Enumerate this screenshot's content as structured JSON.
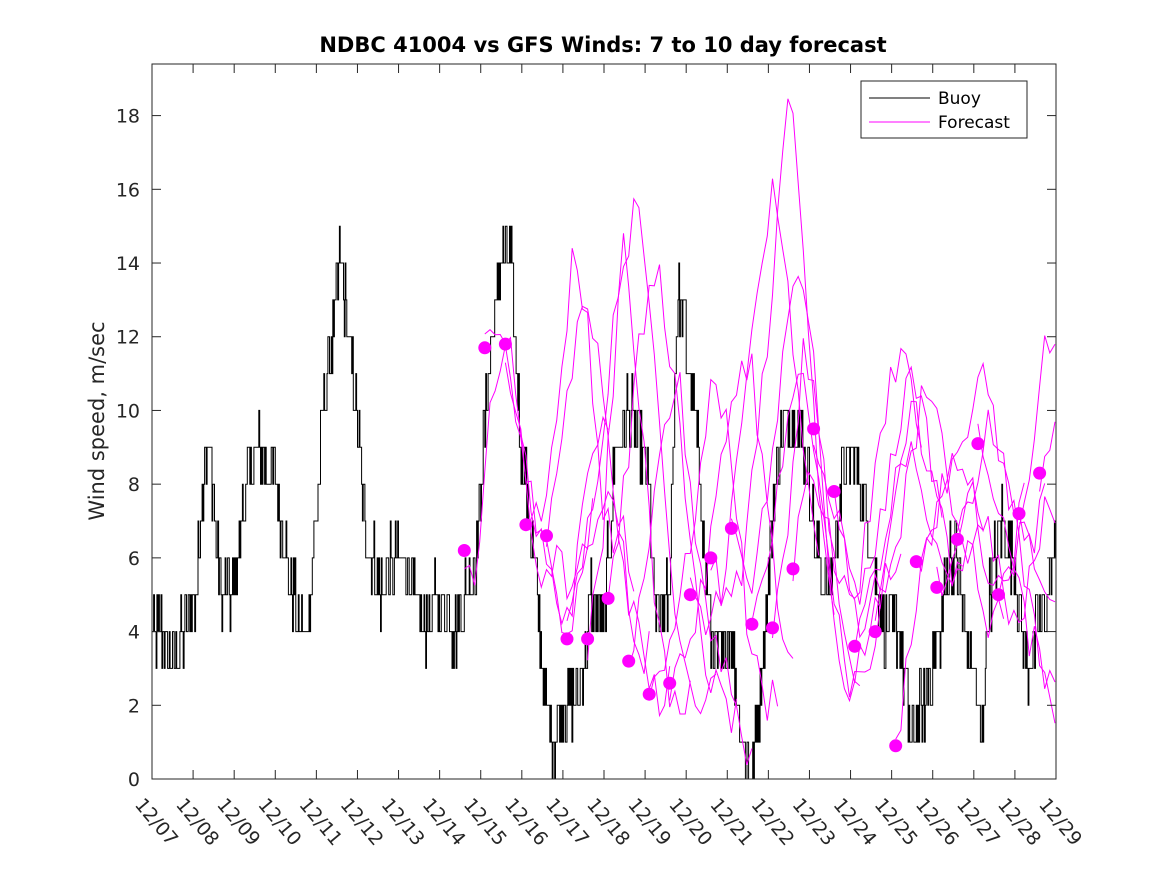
{
  "chart_data": {
    "type": "line",
    "title": "NDBC 41004 vs GFS Winds: 7 to 10 day forecast",
    "xlabel": "",
    "ylabel": "Wind speed, m/sec",
    "ylim": [
      0,
      19.4
    ],
    "xlim": [
      0,
      22
    ],
    "yticks": [
      0,
      2,
      4,
      6,
      8,
      10,
      12,
      14,
      16,
      18
    ],
    "xtick_labels": [
      "12/07",
      "12/08",
      "12/09",
      "12/10",
      "12/11",
      "12/12",
      "12/13",
      "12/14",
      "12/15",
      "12/16",
      "12/17",
      "12/18",
      "12/19",
      "12/20",
      "12/21",
      "12/22",
      "12/23",
      "12/24",
      "12/25",
      "12/26",
      "12/27",
      "12/28",
      "12/29"
    ],
    "legend": {
      "position": "top-right",
      "entries": [
        "Buoy",
        "Forecast"
      ]
    },
    "colors": {
      "buoy": "#000000",
      "forecast": "#ff00ff",
      "axes": "#262626"
    },
    "buoy_anchors": [
      [
        0.0,
        4
      ],
      [
        0.3,
        4
      ],
      [
        0.5,
        3
      ],
      [
        0.8,
        4
      ],
      [
        1.1,
        5
      ],
      [
        1.3,
        9
      ],
      [
        1.5,
        8
      ],
      [
        1.7,
        5
      ],
      [
        2.0,
        5
      ],
      [
        2.3,
        8
      ],
      [
        2.7,
        9
      ],
      [
        3.0,
        8
      ],
      [
        3.3,
        6
      ],
      [
        3.6,
        4
      ],
      [
        3.8,
        4
      ],
      [
        4.2,
        10
      ],
      [
        4.5,
        13
      ],
      [
        4.6,
        14
      ],
      [
        4.9,
        11
      ],
      [
        5.2,
        7
      ],
      [
        5.6,
        5
      ],
      [
        5.9,
        6
      ],
      [
        6.2,
        6
      ],
      [
        6.6,
        4
      ],
      [
        7.0,
        5
      ],
      [
        7.4,
        4
      ],
      [
        7.9,
        6
      ],
      [
        8.2,
        11
      ],
      [
        8.5,
        14
      ],
      [
        8.75,
        14
      ],
      [
        9.0,
        9
      ],
      [
        9.3,
        6
      ],
      [
        9.6,
        2
      ],
      [
        9.8,
        1
      ],
      [
        10.0,
        2
      ],
      [
        10.4,
        2
      ],
      [
        10.7,
        5
      ],
      [
        11.0,
        4
      ],
      [
        11.3,
        9
      ],
      [
        11.6,
        10
      ],
      [
        11.9,
        9
      ],
      [
        12.1,
        8
      ],
      [
        12.3,
        4
      ],
      [
        12.6,
        5
      ],
      [
        12.8,
        13
      ],
      [
        13.0,
        12
      ],
      [
        13.3,
        9
      ],
      [
        13.6,
        4
      ],
      [
        13.9,
        3
      ],
      [
        14.1,
        4
      ],
      [
        14.4,
        1
      ],
      [
        14.6,
        0
      ],
      [
        14.8,
        2
      ],
      [
        15.1,
        7
      ],
      [
        15.3,
        9
      ],
      [
        15.6,
        10
      ],
      [
        15.9,
        9
      ],
      [
        16.2,
        6
      ],
      [
        16.5,
        5
      ],
      [
        16.8,
        8
      ],
      [
        17.1,
        9
      ],
      [
        17.4,
        7
      ],
      [
        17.7,
        5
      ],
      [
        17.9,
        4
      ],
      [
        18.2,
        4
      ],
      [
        18.5,
        1
      ],
      [
        18.8,
        2
      ],
      [
        19.2,
        4
      ],
      [
        19.4,
        6
      ],
      [
        19.6,
        6
      ],
      [
        19.8,
        4
      ],
      [
        20.0,
        3
      ],
      [
        20.2,
        1
      ],
      [
        20.4,
        5
      ],
      [
        20.7,
        7
      ],
      [
        21.0,
        6
      ],
      [
        21.3,
        3
      ],
      [
        21.6,
        4
      ],
      [
        21.8,
        5
      ],
      [
        22.0,
        6
      ]
    ],
    "forecast_anchors": [
      [
        [
          7.6,
          6.2
        ],
        [
          7.9,
          5.5
        ],
        [
          8.2,
          9.5
        ],
        [
          8.6,
          12.0
        ],
        [
          9.0,
          8.5
        ],
        [
          9.4,
          5.5
        ],
        [
          9.8,
          6.0
        ],
        [
          10.3,
          5.0
        ],
        [
          10.8,
          7.5
        ]
      ],
      [
        [
          8.1,
          11.7
        ],
        [
          8.5,
          12.6
        ],
        [
          8.9,
          10.5
        ],
        [
          9.3,
          7.0
        ],
        [
          9.8,
          5.0
        ],
        [
          10.2,
          4.5
        ],
        [
          10.6,
          8.0
        ],
        [
          11.0,
          10.5
        ],
        [
          11.2,
          9.5
        ]
      ],
      [
        [
          8.6,
          11.8
        ],
        [
          9.0,
          9.0
        ],
        [
          9.4,
          7.0
        ],
        [
          9.8,
          5.0
        ],
        [
          10.2,
          4.0
        ],
        [
          10.6,
          6.0
        ],
        [
          11.0,
          8.0
        ],
        [
          11.4,
          7.0
        ],
        [
          11.8,
          5.0
        ]
      ],
      [
        [
          9.1,
          6.9
        ],
        [
          9.5,
          7.5
        ],
        [
          9.9,
          10.0
        ],
        [
          10.2,
          14.0
        ],
        [
          10.6,
          12.5
        ],
        [
          11.0,
          7.0
        ],
        [
          11.4,
          6.5
        ],
        [
          11.8,
          3.2
        ],
        [
          12.1,
          3.5
        ]
      ],
      [
        [
          9.6,
          6.6
        ],
        [
          10.0,
          9.0
        ],
        [
          10.4,
          13.0
        ],
        [
          10.8,
          12.0
        ],
        [
          11.2,
          8.0
        ],
        [
          11.6,
          5.0
        ],
        [
          12.0,
          3.0
        ],
        [
          12.4,
          2.0
        ],
        [
          12.6,
          3.0
        ]
      ],
      [
        [
          10.1,
          3.8
        ],
        [
          10.5,
          6.0
        ],
        [
          10.9,
          9.0
        ],
        [
          11.2,
          12.0
        ],
        [
          11.5,
          15.0
        ],
        [
          11.9,
          10.0
        ],
        [
          12.3,
          4.0
        ],
        [
          12.7,
          2.0
        ],
        [
          13.1,
          2.5
        ]
      ],
      [
        [
          10.6,
          3.8
        ],
        [
          11.0,
          7.0
        ],
        [
          11.4,
          14.0
        ],
        [
          11.8,
          15.5
        ],
        [
          12.2,
          12.0
        ],
        [
          12.6,
          6.0
        ],
        [
          13.0,
          3.0
        ],
        [
          13.4,
          2.0
        ],
        [
          13.8,
          3.5
        ]
      ],
      [
        [
          11.1,
          4.9
        ],
        [
          11.5,
          8.0
        ],
        [
          11.9,
          12.0
        ],
        [
          12.3,
          14.0
        ],
        [
          12.7,
          11.0
        ],
        [
          13.1,
          6.0
        ],
        [
          13.5,
          3.0
        ],
        [
          13.9,
          2.0
        ],
        [
          14.3,
          1.5
        ]
      ],
      [
        [
          11.6,
          3.2
        ],
        [
          12.0,
          5.0
        ],
        [
          12.4,
          9.0
        ],
        [
          12.8,
          11.0
        ],
        [
          13.2,
          7.0
        ],
        [
          13.6,
          4.0
        ],
        [
          14.0,
          3.0
        ],
        [
          14.4,
          1.0
        ],
        [
          14.7,
          0.5
        ]
      ],
      [
        [
          12.1,
          2.3
        ],
        [
          12.5,
          3.5
        ],
        [
          12.9,
          5.0
        ],
        [
          13.3,
          8.0
        ],
        [
          13.7,
          11.0
        ],
        [
          14.1,
          9.0
        ],
        [
          14.5,
          4.0
        ],
        [
          14.9,
          2.0
        ],
        [
          15.3,
          2.6
        ]
      ],
      [
        [
          12.6,
          2.6
        ],
        [
          13.0,
          3.5
        ],
        [
          13.4,
          5.0
        ],
        [
          13.8,
          8.0
        ],
        [
          14.2,
          11.0
        ],
        [
          14.6,
          11.2
        ],
        [
          15.0,
          7.0
        ],
        [
          15.3,
          4.0
        ],
        [
          15.7,
          2.5
        ]
      ],
      [
        [
          13.1,
          5.0
        ],
        [
          13.5,
          4.0
        ],
        [
          13.9,
          5.5
        ],
        [
          14.3,
          9.0
        ],
        [
          14.7,
          13.0
        ],
        [
          15.1,
          15.8
        ],
        [
          15.5,
          13.0
        ],
        [
          15.9,
          8.0
        ],
        [
          16.3,
          6.0
        ]
      ],
      [
        [
          13.6,
          6.0
        ],
        [
          14.0,
          4.5
        ],
        [
          14.4,
          6.0
        ],
        [
          14.8,
          10.0
        ],
        [
          15.2,
          14.5
        ],
        [
          15.5,
          19.0
        ],
        [
          15.9,
          14.0
        ],
        [
          16.3,
          7.0
        ],
        [
          16.7,
          4.0
        ]
      ],
      [
        [
          14.1,
          6.8
        ],
        [
          14.5,
          5.0
        ],
        [
          14.9,
          7.0
        ],
        [
          15.3,
          11.0
        ],
        [
          15.7,
          14.0
        ],
        [
          16.1,
          11.0
        ],
        [
          16.5,
          5.0
        ],
        [
          16.9,
          2.0
        ],
        [
          17.3,
          3.0
        ]
      ],
      [
        [
          14.6,
          4.2
        ],
        [
          15.0,
          6.0
        ],
        [
          15.4,
          9.0
        ],
        [
          15.8,
          11.0
        ],
        [
          16.2,
          9.0
        ],
        [
          16.6,
          5.0
        ],
        [
          17.0,
          2.5
        ],
        [
          17.4,
          3.0
        ],
        [
          17.8,
          4.5
        ]
      ],
      [
        [
          15.1,
          4.1
        ],
        [
          15.5,
          7.0
        ],
        [
          15.9,
          12.0
        ],
        [
          16.3,
          9.0
        ],
        [
          16.7,
          5.0
        ],
        [
          17.1,
          3.0
        ],
        [
          17.5,
          4.0
        ],
        [
          17.9,
          5.5
        ],
        [
          18.3,
          6.0
        ]
      ],
      [
        [
          15.6,
          5.7
        ],
        [
          16.0,
          9.0
        ],
        [
          16.4,
          7.0
        ],
        [
          16.8,
          5.0
        ],
        [
          17.2,
          5.5
        ],
        [
          17.6,
          8.0
        ],
        [
          18.0,
          11.0
        ],
        [
          18.4,
          11.7
        ],
        [
          18.8,
          8.0
        ]
      ],
      [
        [
          16.1,
          9.5
        ],
        [
          16.5,
          8.0
        ],
        [
          16.9,
          6.0
        ],
        [
          17.3,
          5.0
        ],
        [
          17.7,
          7.0
        ],
        [
          18.1,
          9.0
        ],
        [
          18.5,
          11.5
        ],
        [
          18.9,
          9.0
        ],
        [
          19.3,
          7.0
        ]
      ],
      [
        [
          16.6,
          7.8
        ],
        [
          17.0,
          5.0
        ],
        [
          17.4,
          4.0
        ],
        [
          17.8,
          6.0
        ],
        [
          18.2,
          9.0
        ],
        [
          18.6,
          10.0
        ],
        [
          19.0,
          8.0
        ],
        [
          19.4,
          6.0
        ],
        [
          19.8,
          5.0
        ]
      ],
      [
        [
          17.1,
          3.6
        ],
        [
          17.5,
          5.0
        ],
        [
          17.9,
          7.0
        ],
        [
          18.3,
          9.0
        ],
        [
          18.7,
          8.0
        ],
        [
          19.1,
          6.0
        ],
        [
          19.5,
          5.0
        ],
        [
          19.9,
          7.0
        ],
        [
          20.3,
          6.0
        ]
      ],
      [
        [
          17.6,
          4.0
        ],
        [
          18.0,
          6.0
        ],
        [
          18.4,
          8.0
        ],
        [
          18.8,
          11.0
        ],
        [
          19.2,
          9.0
        ],
        [
          19.6,
          7.0
        ],
        [
          20.0,
          6.0
        ],
        [
          20.4,
          4.0
        ],
        [
          20.8,
          5.0
        ]
      ],
      [
        [
          18.1,
          0.9
        ],
        [
          18.5,
          4.0
        ],
        [
          18.9,
          6.5
        ],
        [
          19.3,
          8.0
        ],
        [
          19.7,
          9.0
        ],
        [
          20.1,
          7.0
        ],
        [
          20.5,
          5.0
        ],
        [
          20.9,
          6.0
        ],
        [
          21.3,
          8.0
        ]
      ],
      [
        [
          18.6,
          5.9
        ],
        [
          19.0,
          7.0
        ],
        [
          19.4,
          8.5
        ],
        [
          19.8,
          9.5
        ],
        [
          20.2,
          11.0
        ],
        [
          20.6,
          9.0
        ],
        [
          21.0,
          7.0
        ],
        [
          21.4,
          6.0
        ],
        [
          21.8,
          8.0
        ]
      ],
      [
        [
          19.1,
          5.2
        ],
        [
          19.5,
          6.0
        ],
        [
          19.9,
          8.0
        ],
        [
          20.3,
          7.0
        ],
        [
          20.7,
          5.0
        ],
        [
          21.1,
          4.0
        ],
        [
          21.5,
          6.0
        ],
        [
          21.8,
          7.5
        ],
        [
          22.0,
          7.5
        ]
      ],
      [
        [
          19.6,
          6.5
        ],
        [
          20.0,
          8.0
        ],
        [
          20.4,
          10.0
        ],
        [
          20.8,
          8.0
        ],
        [
          21.2,
          6.0
        ],
        [
          21.6,
          3.0
        ],
        [
          22.0,
          2.0
        ]
      ],
      [
        [
          20.1,
          9.1
        ],
        [
          20.5,
          8.0
        ],
        [
          20.9,
          6.0
        ],
        [
          21.3,
          4.0
        ],
        [
          21.7,
          3.0
        ],
        [
          22.0,
          3.2
        ]
      ],
      [
        [
          20.6,
          5.0
        ],
        [
          21.0,
          6.0
        ],
        [
          21.4,
          9.0
        ],
        [
          21.7,
          11.5
        ],
        [
          21.9,
          12.0
        ],
        [
          22.0,
          11.5
        ]
      ],
      [
        [
          21.1,
          7.2
        ],
        [
          21.4,
          6.0
        ],
        [
          21.7,
          5.0
        ],
        [
          22.0,
          5.2
        ]
      ],
      [
        [
          21.6,
          8.3
        ],
        [
          21.8,
          9.0
        ],
        [
          22.0,
          10.0
        ]
      ]
    ],
    "forecast_dots": [
      [
        7.6,
        6.2
      ],
      [
        8.1,
        11.7
      ],
      [
        8.6,
        11.8
      ],
      [
        9.1,
        6.9
      ],
      [
        9.6,
        6.6
      ],
      [
        10.1,
        3.8
      ],
      [
        10.6,
        3.8
      ],
      [
        11.1,
        4.9
      ],
      [
        11.6,
        3.2
      ],
      [
        12.1,
        2.3
      ],
      [
        12.6,
        2.6
      ],
      [
        13.1,
        5.0
      ],
      [
        13.6,
        6.0
      ],
      [
        14.1,
        6.8
      ],
      [
        14.6,
        4.2
      ],
      [
        15.1,
        4.1
      ],
      [
        15.6,
        5.7
      ],
      [
        16.1,
        9.5
      ],
      [
        16.6,
        7.8
      ],
      [
        17.1,
        3.6
      ],
      [
        17.6,
        4.0
      ],
      [
        18.1,
        0.9
      ],
      [
        18.6,
        5.9
      ],
      [
        19.1,
        5.2
      ],
      [
        19.6,
        6.5
      ],
      [
        20.1,
        9.1
      ],
      [
        20.6,
        5.0
      ],
      [
        21.1,
        7.2
      ],
      [
        21.6,
        8.3
      ]
    ]
  }
}
